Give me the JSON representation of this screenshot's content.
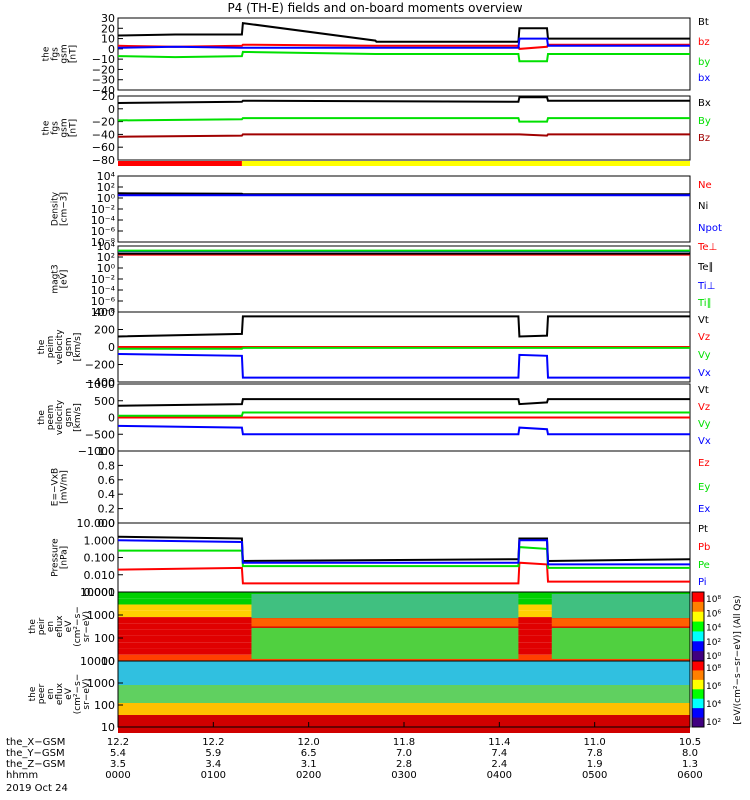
{
  "title": "P4 (TH-E) fields and on-board moments overview",
  "colors": {
    "black": "#000000",
    "red": "#ff0000",
    "green": "#00e000",
    "blue": "#0000ff",
    "darkred": "#a00000",
    "yellow": "#ffff00",
    "lightgreen": "#00ff00"
  },
  "chart_data": [
    {
      "type": "line",
      "id": "fgs_gsm",
      "ylabel": [
        "the",
        "fgs",
        "gsm",
        "[nT]"
      ],
      "yticks": [
        "30",
        "20",
        "10",
        "0",
        "−10",
        "−20",
        "−30",
        "−40"
      ],
      "ylim": [
        -40,
        30
      ],
      "legend": [
        "Bt",
        "bz",
        "by",
        "bx"
      ],
      "series": [
        {
          "name": "Bt",
          "color": "#000000",
          "x": [
            0,
            60,
            130,
            131,
            270,
            271,
            420,
            421,
            450,
            451,
            600
          ],
          "y": [
            13,
            14,
            14,
            25,
            8,
            7,
            7,
            20,
            20,
            10,
            10
          ]
        },
        {
          "name": "bz",
          "color": "#ff0000",
          "x": [
            0,
            60,
            130,
            131,
            270,
            271,
            420,
            421,
            450,
            451,
            600
          ],
          "y": [
            3,
            2,
            3,
            4,
            3,
            3,
            3,
            0,
            2,
            4,
            4
          ]
        },
        {
          "name": "by",
          "color": "#00e000",
          "x": [
            0,
            60,
            130,
            131,
            270,
            271,
            420,
            421,
            450,
            451,
            600
          ],
          "y": [
            -7,
            -8,
            -7,
            -3,
            -5,
            -5,
            -5,
            -12,
            -12,
            -5,
            -5
          ]
        },
        {
          "name": "bx",
          "color": "#0000ff",
          "x": [
            0,
            60,
            130,
            131,
            270,
            271,
            420,
            421,
            450,
            451,
            600
          ],
          "y": [
            1,
            2,
            1,
            1,
            1,
            1,
            1,
            10,
            10,
            3,
            3
          ]
        }
      ]
    },
    {
      "type": "line",
      "id": "fgs_gsm2",
      "ylabel": [
        "the",
        "fgs",
        "gsm",
        "[nT]"
      ],
      "yticks": [
        "20",
        "0",
        "−20",
        "−40",
        "−60",
        "−80"
      ],
      "ylim": [
        -90,
        20
      ],
      "legend": [
        "Bx",
        "By",
        "Bz"
      ],
      "series": [
        {
          "name": "Bx",
          "color": "#000000",
          "x": [
            0,
            130,
            131,
            420,
            421,
            450,
            451,
            600
          ],
          "y": [
            8,
            10,
            12,
            10,
            18,
            18,
            12,
            12
          ]
        },
        {
          "name": "By",
          "color": "#00e000",
          "x": [
            0,
            130,
            131,
            420,
            421,
            450,
            451,
            600
          ],
          "y": [
            -22,
            -20,
            -18,
            -18,
            -24,
            -24,
            -18,
            -18
          ]
        },
        {
          "name": "Bz",
          "color": "#a00000",
          "x": [
            0,
            130,
            131,
            420,
            421,
            450,
            451,
            600
          ],
          "y": [
            -50,
            -48,
            -46,
            -46,
            -46,
            -48,
            -46,
            -46
          ]
        }
      ]
    },
    {
      "type": "line",
      "id": "density",
      "ylabel": [
        "Density",
        "[cm−3]"
      ],
      "yticks": [
        "10⁴",
        "10²",
        "10⁰",
        "10⁻²",
        "10⁻⁴",
        "10⁻⁶",
        "10⁻⁸"
      ],
      "ylim": [
        -9,
        4
      ],
      "log": true,
      "legend": [
        "Ne",
        "Ni",
        "Npot"
      ],
      "series": [
        {
          "name": "Ne",
          "color": "#ff0000",
          "x": [
            0,
            130,
            131,
            600
          ],
          "y": [
            0.5,
            0.4,
            0.3,
            0.3
          ]
        },
        {
          "name": "Ni",
          "color": "#000000",
          "x": [
            0,
            130,
            131,
            600
          ],
          "y": [
            0.6,
            0.5,
            0.4,
            0.4
          ]
        },
        {
          "name": "Npot",
          "color": "#0000ff",
          "x": [
            0,
            600
          ],
          "y": [
            0.2,
            0.2
          ]
        }
      ]
    },
    {
      "type": "line",
      "id": "magt3",
      "ylabel": [
        "magt3",
        "[eV]"
      ],
      "yticks": [
        "10⁴",
        "10²",
        "10⁰",
        "10⁻²",
        "10⁻⁴",
        "10⁻⁶",
        "10⁻⁸"
      ],
      "ylim": [
        -9,
        4
      ],
      "log": true,
      "legend": [
        "Te⊥",
        "Te∥",
        "Ti⊥",
        "Ti∥"
      ],
      "series": [
        {
          "name": "Te⊥",
          "color": "#ff0000",
          "x": [
            0,
            600
          ],
          "y": [
            2.3,
            2.3
          ]
        },
        {
          "name": "Te∥",
          "color": "#000000",
          "x": [
            0,
            600
          ],
          "y": [
            2.5,
            2.5
          ]
        },
        {
          "name": "Ti⊥",
          "color": "#0000ff",
          "x": [
            0,
            600
          ],
          "y": [
            3.0,
            3.0
          ]
        },
        {
          "name": "Ti∥",
          "color": "#00e000",
          "x": [
            0,
            600
          ],
          "y": [
            3.1,
            3.1
          ]
        }
      ]
    },
    {
      "type": "line",
      "id": "peim",
      "ylabel": [
        "the",
        "peim",
        "velocity",
        "gsm",
        "[km/s]"
      ],
      "yticks": [
        "400",
        "200",
        "0",
        "−200",
        "−400"
      ],
      "ylim": [
        -400,
        400
      ],
      "legend": [
        "Vt",
        "Vz",
        "Vy",
        "Vx"
      ],
      "series": [
        {
          "name": "Vt",
          "color": "#000000",
          "x": [
            0,
            130,
            131,
            420,
            421,
            450,
            451,
            600
          ],
          "y": [
            120,
            150,
            350,
            350,
            120,
            130,
            350,
            350
          ]
        },
        {
          "name": "Vz",
          "color": "#ff0000",
          "x": [
            0,
            600
          ],
          "y": [
            0,
            0
          ]
        },
        {
          "name": "Vy",
          "color": "#00e000",
          "x": [
            0,
            130,
            131,
            600
          ],
          "y": [
            -20,
            -20,
            -10,
            -10
          ]
        },
        {
          "name": "Vx",
          "color": "#0000ff",
          "x": [
            0,
            130,
            131,
            420,
            421,
            450,
            451,
            600
          ],
          "y": [
            -80,
            -100,
            -350,
            -350,
            -90,
            -100,
            -350,
            -350
          ]
        }
      ]
    },
    {
      "type": "line",
      "id": "peem",
      "ylabel": [
        "the",
        "peem",
        "velocity",
        "gsm",
        "[km/s]"
      ],
      "yticks": [
        "1000",
        "500",
        "0",
        "−500",
        "−1000"
      ],
      "ylim": [
        -1000,
        1000
      ],
      "legend": [
        "Vt",
        "Vz",
        "Vy",
        "Vx"
      ],
      "series": [
        {
          "name": "Vt",
          "color": "#000000",
          "x": [
            0,
            130,
            131,
            420,
            421,
            450,
            451,
            600
          ],
          "y": [
            350,
            400,
            550,
            550,
            400,
            450,
            550,
            550
          ]
        },
        {
          "name": "Vz",
          "color": "#ff0000",
          "x": [
            0,
            600
          ],
          "y": [
            0,
            0
          ]
        },
        {
          "name": "Vy",
          "color": "#00e000",
          "x": [
            0,
            130,
            131,
            600
          ],
          "y": [
            50,
            50,
            150,
            150
          ]
        },
        {
          "name": "Vx",
          "color": "#0000ff",
          "x": [
            0,
            130,
            131,
            420,
            421,
            450,
            451,
            600
          ],
          "y": [
            -250,
            -300,
            -500,
            -500,
            -300,
            -350,
            -500,
            -500
          ]
        }
      ]
    },
    {
      "type": "line",
      "id": "efield",
      "ylabel": [
        "E=−VxB",
        "[mV/m]"
      ],
      "yticks": [
        "1.0",
        "0.8",
        "0.6",
        "0.4",
        "0.2",
        "0.0"
      ],
      "ylim": [
        0,
        1
      ],
      "legend": [
        "Ez",
        "Ey",
        "Ex"
      ],
      "series": []
    },
    {
      "type": "line",
      "id": "pressure",
      "ylabel": [
        "Pressure",
        "[nPa]"
      ],
      "yticks": [
        "10.000",
        "1.000",
        "0.100",
        "0.010",
        "0.001"
      ],
      "ylim": [
        -3,
        1
      ],
      "log": true,
      "legend": [
        "Pt",
        "Pb",
        "Pe",
        "Pi"
      ],
      "series": [
        {
          "name": "Pt",
          "color": "#000000",
          "x": [
            0,
            130,
            131,
            420,
            421,
            450,
            451,
            600
          ],
          "y": [
            0.2,
            0.1,
            -1.2,
            -1.1,
            0.1,
            0.1,
            -1.2,
            -1.1
          ]
        },
        {
          "name": "Pb",
          "color": "#ff0000",
          "x": [
            0,
            130,
            131,
            420,
            421,
            450,
            451,
            600
          ],
          "y": [
            -1.7,
            -1.6,
            -2.5,
            -2.5,
            -1.3,
            -1.4,
            -2.4,
            -2.4
          ]
        },
        {
          "name": "Pe",
          "color": "#00e000",
          "x": [
            0,
            130,
            131,
            420,
            421,
            450,
            451,
            600
          ],
          "y": [
            -0.6,
            -0.6,
            -1.5,
            -1.5,
            -0.4,
            -0.5,
            -1.6,
            -1.6
          ]
        },
        {
          "name": "Pi",
          "color": "#0000ff",
          "x": [
            0,
            130,
            131,
            420,
            421,
            450,
            451,
            600
          ],
          "y": [
            0,
            -0.1,
            -1.3,
            -1.3,
            0,
            0,
            -1.4,
            -1.4
          ]
        }
      ]
    },
    {
      "type": "heatmap",
      "id": "peir",
      "ylabel": [
        "the",
        "peir",
        "en",
        "eflux",
        "eV",
        "(cm²−s−",
        "sr−eV)"
      ],
      "yticks": [
        "10000",
        "1000",
        "100",
        "10"
      ],
      "cbar_ticks": [
        "10⁸",
        "10⁶",
        "10⁴",
        "10²",
        "10⁰"
      ]
    },
    {
      "type": "heatmap",
      "id": "peer",
      "ylabel": [
        "the",
        "peer",
        "en",
        "eflux",
        "eV",
        "(cm²−s−",
        "sr−eV)"
      ],
      "yticks": [
        "10000",
        "1000",
        "100",
        "10"
      ],
      "cbar_ticks": [
        "10⁸",
        "10⁶",
        "10⁴",
        "10²"
      ]
    }
  ],
  "right_axis_label": "[eV/(cm²−s−sr−eV)] (All Qs)",
  "xaxis": {
    "row_labels": [
      "the_X−GSM",
      "the_Y−GSM",
      "the_Z−GSM",
      "hhmm",
      "2019 Oct 24"
    ],
    "ticks": [
      {
        "x": "12.2",
        "y": "5.4",
        "z": "3.5",
        "t": "0000"
      },
      {
        "x": "12.2",
        "y": "5.9",
        "z": "3.4",
        "t": "0100"
      },
      {
        "x": "12.0",
        "y": "6.5",
        "z": "3.1",
        "t": "0200"
      },
      {
        "x": "11.8",
        "y": "7.0",
        "z": "2.8",
        "t": "0300"
      },
      {
        "x": "11.4",
        "y": "7.4",
        "z": "2.4",
        "t": "0400"
      },
      {
        "x": "11.0",
        "y": "7.8",
        "z": "1.9",
        "t": "0500"
      },
      {
        "x": "10.5",
        "y": "8.0",
        "z": "1.3",
        "t": "0600"
      }
    ]
  }
}
